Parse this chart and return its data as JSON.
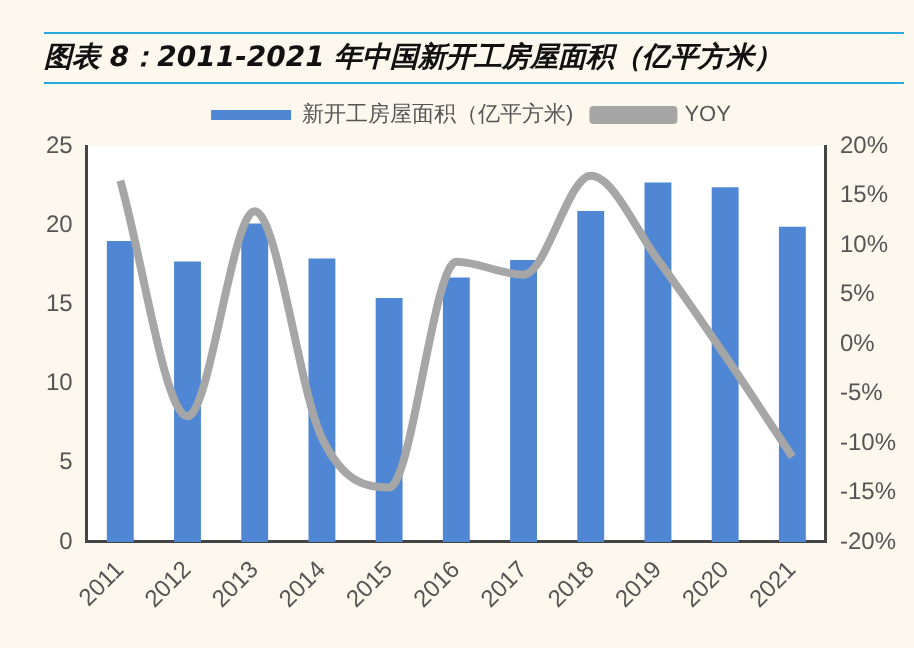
{
  "chart_data": {
    "type": "bar",
    "title": "图表 8：2011-2021 年中国新开工房屋面积（亿平方米）",
    "categories": [
      "2011",
      "2012",
      "2013",
      "2014",
      "2015",
      "2016",
      "2017",
      "2018",
      "2019",
      "2020",
      "2021"
    ],
    "series": [
      {
        "name": "新开工房屋面积（亿平方米)",
        "color": "#5087d4",
        "values": [
          19.0,
          17.7,
          20.1,
          17.9,
          15.4,
          16.7,
          17.8,
          20.9,
          22.7,
          22.4,
          19.9
        ]
      },
      {
        "name": "YOY",
        "type": "line",
        "axis": "y2",
        "color": "#a6a6a6",
        "values": [
          16.5,
          -7.3,
          13.4,
          -9.5,
          -14.5,
          8.3,
          7.0,
          17.0,
          8.5,
          -1.2,
          -11.4
        ]
      }
    ],
    "ylim": [
      0,
      25
    ],
    "yticks": [
      0,
      5,
      10,
      15,
      20,
      25
    ],
    "y2lim": [
      -20,
      20
    ],
    "y2ticks": [
      {
        "value": -20,
        "label": "-20%"
      },
      {
        "value": -15,
        "label": "-15%"
      },
      {
        "value": -10,
        "label": "-10%"
      },
      {
        "value": -5,
        "label": "-5%"
      },
      {
        "value": 0,
        "label": "0%"
      },
      {
        "value": 5,
        "label": "5%"
      },
      {
        "value": 10,
        "label": "10%"
      },
      {
        "value": 15,
        "label": "15%"
      },
      {
        "value": 20,
        "label": "20%"
      }
    ],
    "grid": false,
    "legend": "top",
    "marker": "none"
  }
}
